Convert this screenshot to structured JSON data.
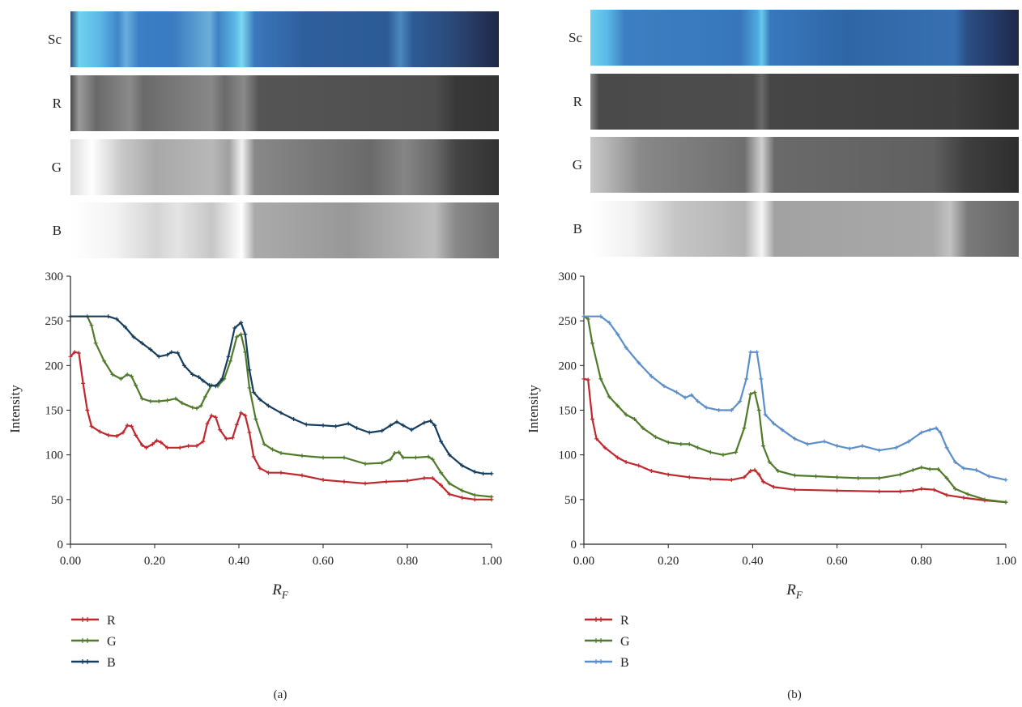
{
  "colors": {
    "R": "#c0272d",
    "G": "#4f7a2a",
    "B": "#163d5c",
    "B_light": "#5b8ec9",
    "axis": "#222222"
  },
  "strip_labels": [
    "Sc",
    "R",
    "G",
    "B"
  ],
  "chart_data": [
    {
      "panel_label": "(a)",
      "type": "line",
      "xlabel": "R",
      "xlabel_sub": "F",
      "ylabel": "Intensity",
      "xlim": [
        0,
        1
      ],
      "ylim": [
        0,
        300
      ],
      "xticks": [
        "0.00",
        "0.20",
        "0.40",
        "0.60",
        "0.80",
        "1.00"
      ],
      "yticks": [
        "0",
        "50",
        "100",
        "150",
        "200",
        "250",
        "300"
      ],
      "legend": [
        "R",
        "G",
        "B"
      ],
      "legend_position": "bottom-left",
      "series": [
        {
          "name": "R",
          "color": "#c0272d",
          "points": [
            [
              0.0,
              210
            ],
            [
              0.01,
              215
            ],
            [
              0.02,
              214
            ],
            [
              0.03,
              180
            ],
            [
              0.04,
              150
            ],
            [
              0.05,
              132
            ],
            [
              0.07,
              126
            ],
            [
              0.09,
              122
            ],
            [
              0.11,
              121
            ],
            [
              0.125,
              125
            ],
            [
              0.135,
              133
            ],
            [
              0.145,
              132
            ],
            [
              0.155,
              122
            ],
            [
              0.17,
              111
            ],
            [
              0.18,
              108
            ],
            [
              0.195,
              112
            ],
            [
              0.205,
              116
            ],
            [
              0.215,
              114
            ],
            [
              0.23,
              108
            ],
            [
              0.26,
              108
            ],
            [
              0.28,
              110
            ],
            [
              0.3,
              110
            ],
            [
              0.315,
              115
            ],
            [
              0.325,
              135
            ],
            [
              0.335,
              144
            ],
            [
              0.345,
              142
            ],
            [
              0.355,
              128
            ],
            [
              0.37,
              118
            ],
            [
              0.385,
              119
            ],
            [
              0.395,
              134
            ],
            [
              0.405,
              147
            ],
            [
              0.415,
              144
            ],
            [
              0.425,
              125
            ],
            [
              0.435,
              98
            ],
            [
              0.45,
              85
            ],
            [
              0.47,
              80
            ],
            [
              0.5,
              80
            ],
            [
              0.55,
              77
            ],
            [
              0.6,
              72
            ],
            [
              0.65,
              70
            ],
            [
              0.7,
              68
            ],
            [
              0.75,
              70
            ],
            [
              0.8,
              71
            ],
            [
              0.84,
              74
            ],
            [
              0.86,
              74
            ],
            [
              0.88,
              66
            ],
            [
              0.9,
              56
            ],
            [
              0.93,
              52
            ],
            [
              0.96,
              50
            ],
            [
              1.0,
              50
            ]
          ]
        },
        {
          "name": "G",
          "color": "#4f7a2a",
          "points": [
            [
              0.0,
              255
            ],
            [
              0.04,
              255
            ],
            [
              0.05,
              245
            ],
            [
              0.06,
              225
            ],
            [
              0.08,
              205
            ],
            [
              0.1,
              190
            ],
            [
              0.12,
              185
            ],
            [
              0.135,
              190
            ],
            [
              0.145,
              188
            ],
            [
              0.155,
              178
            ],
            [
              0.17,
              163
            ],
            [
              0.19,
              160
            ],
            [
              0.21,
              160
            ],
            [
              0.23,
              161
            ],
            [
              0.25,
              163
            ],
            [
              0.265,
              158
            ],
            [
              0.29,
              153
            ],
            [
              0.3,
              152
            ],
            [
              0.31,
              155
            ],
            [
              0.32,
              165
            ],
            [
              0.335,
              178
            ],
            [
              0.35,
              177
            ],
            [
              0.365,
              185
            ],
            [
              0.38,
              205
            ],
            [
              0.395,
              232
            ],
            [
              0.405,
              235
            ],
            [
              0.415,
              215
            ],
            [
              0.425,
              175
            ],
            [
              0.44,
              140
            ],
            [
              0.46,
              112
            ],
            [
              0.48,
              106
            ],
            [
              0.5,
              102
            ],
            [
              0.55,
              99
            ],
            [
              0.6,
              97
            ],
            [
              0.65,
              97
            ],
            [
              0.7,
              90
            ],
            [
              0.74,
              91
            ],
            [
              0.76,
              95
            ],
            [
              0.77,
              102
            ],
            [
              0.78,
              103
            ],
            [
              0.79,
              97
            ],
            [
              0.82,
              97
            ],
            [
              0.85,
              98
            ],
            [
              0.86,
              95
            ],
            [
              0.88,
              80
            ],
            [
              0.9,
              68
            ],
            [
              0.93,
              60
            ],
            [
              0.96,
              55
            ],
            [
              1.0,
              53
            ]
          ]
        },
        {
          "name": "B",
          "color": "#163d5c",
          "points": [
            [
              0.0,
              255
            ],
            [
              0.09,
              255
            ],
            [
              0.11,
              252
            ],
            [
              0.13,
              243
            ],
            [
              0.15,
              232
            ],
            [
              0.17,
              225
            ],
            [
              0.19,
              218
            ],
            [
              0.21,
              210
            ],
            [
              0.23,
              212
            ],
            [
              0.24,
              215
            ],
            [
              0.255,
              214
            ],
            [
              0.27,
              200
            ],
            [
              0.29,
              190
            ],
            [
              0.305,
              187
            ],
            [
              0.315,
              183
            ],
            [
              0.33,
              178
            ],
            [
              0.345,
              177
            ],
            [
              0.36,
              185
            ],
            [
              0.375,
              210
            ],
            [
              0.39,
              242
            ],
            [
              0.405,
              248
            ],
            [
              0.415,
              235
            ],
            [
              0.425,
              195
            ],
            [
              0.435,
              170
            ],
            [
              0.45,
              162
            ],
            [
              0.47,
              155
            ],
            [
              0.5,
              147
            ],
            [
              0.53,
              140
            ],
            [
              0.56,
              134
            ],
            [
              0.6,
              133
            ],
            [
              0.63,
              132
            ],
            [
              0.66,
              135
            ],
            [
              0.68,
              130
            ],
            [
              0.71,
              125
            ],
            [
              0.74,
              127
            ],
            [
              0.76,
              133
            ],
            [
              0.775,
              137
            ],
            [
              0.79,
              133
            ],
            [
              0.81,
              128
            ],
            [
              0.84,
              136
            ],
            [
              0.855,
              138
            ],
            [
              0.865,
              133
            ],
            [
              0.88,
              115
            ],
            [
              0.9,
              100
            ],
            [
              0.93,
              88
            ],
            [
              0.96,
              81
            ],
            [
              0.98,
              79
            ],
            [
              1.0,
              79
            ]
          ]
        }
      ]
    },
    {
      "panel_label": "(b)",
      "type": "line",
      "xlabel": "R",
      "xlabel_sub": "F",
      "ylabel": "Intensity",
      "xlim": [
        0,
        1
      ],
      "ylim": [
        0,
        300
      ],
      "xticks": [
        "0.00",
        "0.20",
        "0.40",
        "0.60",
        "0.80",
        "1.00"
      ],
      "yticks": [
        "0",
        "50",
        "100",
        "150",
        "200",
        "250",
        "300"
      ],
      "legend": [
        "R",
        "G",
        "B"
      ],
      "legend_position": "bottom-left",
      "series": [
        {
          "name": "R",
          "color": "#c0272d",
          "points": [
            [
              0.0,
              185
            ],
            [
              0.01,
              184
            ],
            [
              0.02,
              140
            ],
            [
              0.03,
              118
            ],
            [
              0.05,
              108
            ],
            [
              0.08,
              97
            ],
            [
              0.1,
              92
            ],
            [
              0.13,
              88
            ],
            [
              0.16,
              82
            ],
            [
              0.2,
              78
            ],
            [
              0.25,
              75
            ],
            [
              0.3,
              73
            ],
            [
              0.35,
              72
            ],
            [
              0.38,
              75
            ],
            [
              0.395,
              82
            ],
            [
              0.405,
              83
            ],
            [
              0.415,
              78
            ],
            [
              0.425,
              70
            ],
            [
              0.45,
              64
            ],
            [
              0.5,
              61
            ],
            [
              0.6,
              60
            ],
            [
              0.7,
              59
            ],
            [
              0.75,
              59
            ],
            [
              0.78,
              60
            ],
            [
              0.8,
              62
            ],
            [
              0.83,
              61
            ],
            [
              0.86,
              55
            ],
            [
              0.9,
              52
            ],
            [
              0.95,
              49
            ],
            [
              1.0,
              47
            ]
          ]
        },
        {
          "name": "G",
          "color": "#4f7a2a",
          "points": [
            [
              0.0,
              255
            ],
            [
              0.01,
              252
            ],
            [
              0.02,
              225
            ],
            [
              0.04,
              185
            ],
            [
              0.06,
              165
            ],
            [
              0.08,
              155
            ],
            [
              0.1,
              145
            ],
            [
              0.12,
              140
            ],
            [
              0.14,
              130
            ],
            [
              0.17,
              120
            ],
            [
              0.2,
              114
            ],
            [
              0.23,
              112
            ],
            [
              0.25,
              112
            ],
            [
              0.27,
              108
            ],
            [
              0.3,
              103
            ],
            [
              0.33,
              100
            ],
            [
              0.36,
              103
            ],
            [
              0.38,
              130
            ],
            [
              0.395,
              168
            ],
            [
              0.405,
              170
            ],
            [
              0.415,
              150
            ],
            [
              0.425,
              110
            ],
            [
              0.44,
              92
            ],
            [
              0.46,
              82
            ],
            [
              0.5,
              77
            ],
            [
              0.55,
              76
            ],
            [
              0.6,
              75
            ],
            [
              0.65,
              74
            ],
            [
              0.7,
              74
            ],
            [
              0.75,
              78
            ],
            [
              0.78,
              83
            ],
            [
              0.8,
              86
            ],
            [
              0.82,
              84
            ],
            [
              0.84,
              84
            ],
            [
              0.86,
              74
            ],
            [
              0.88,
              62
            ],
            [
              0.91,
              56
            ],
            [
              0.95,
              50
            ],
            [
              1.0,
              47
            ]
          ]
        },
        {
          "name": "B",
          "color": "#5b8ec9",
          "points": [
            [
              0.0,
              255
            ],
            [
              0.04,
              255
            ],
            [
              0.06,
              248
            ],
            [
              0.08,
              235
            ],
            [
              0.1,
              220
            ],
            [
              0.13,
              203
            ],
            [
              0.16,
              188
            ],
            [
              0.19,
              177
            ],
            [
              0.22,
              170
            ],
            [
              0.24,
              164
            ],
            [
              0.255,
              167
            ],
            [
              0.27,
              160
            ],
            [
              0.29,
              153
            ],
            [
              0.32,
              150
            ],
            [
              0.35,
              150
            ],
            [
              0.37,
              160
            ],
            [
              0.385,
              185
            ],
            [
              0.395,
              215
            ],
            [
              0.41,
              215
            ],
            [
              0.42,
              185
            ],
            [
              0.43,
              145
            ],
            [
              0.45,
              135
            ],
            [
              0.47,
              128
            ],
            [
              0.5,
              118
            ],
            [
              0.53,
              112
            ],
            [
              0.57,
              115
            ],
            [
              0.6,
              110
            ],
            [
              0.63,
              107
            ],
            [
              0.66,
              110
            ],
            [
              0.7,
              105
            ],
            [
              0.74,
              108
            ],
            [
              0.77,
              115
            ],
            [
              0.8,
              125
            ],
            [
              0.82,
              128
            ],
            [
              0.835,
              130
            ],
            [
              0.845,
              125
            ],
            [
              0.86,
              108
            ],
            [
              0.88,
              92
            ],
            [
              0.9,
              85
            ],
            [
              0.93,
              83
            ],
            [
              0.96,
              76
            ],
            [
              1.0,
              72
            ]
          ]
        }
      ]
    }
  ]
}
